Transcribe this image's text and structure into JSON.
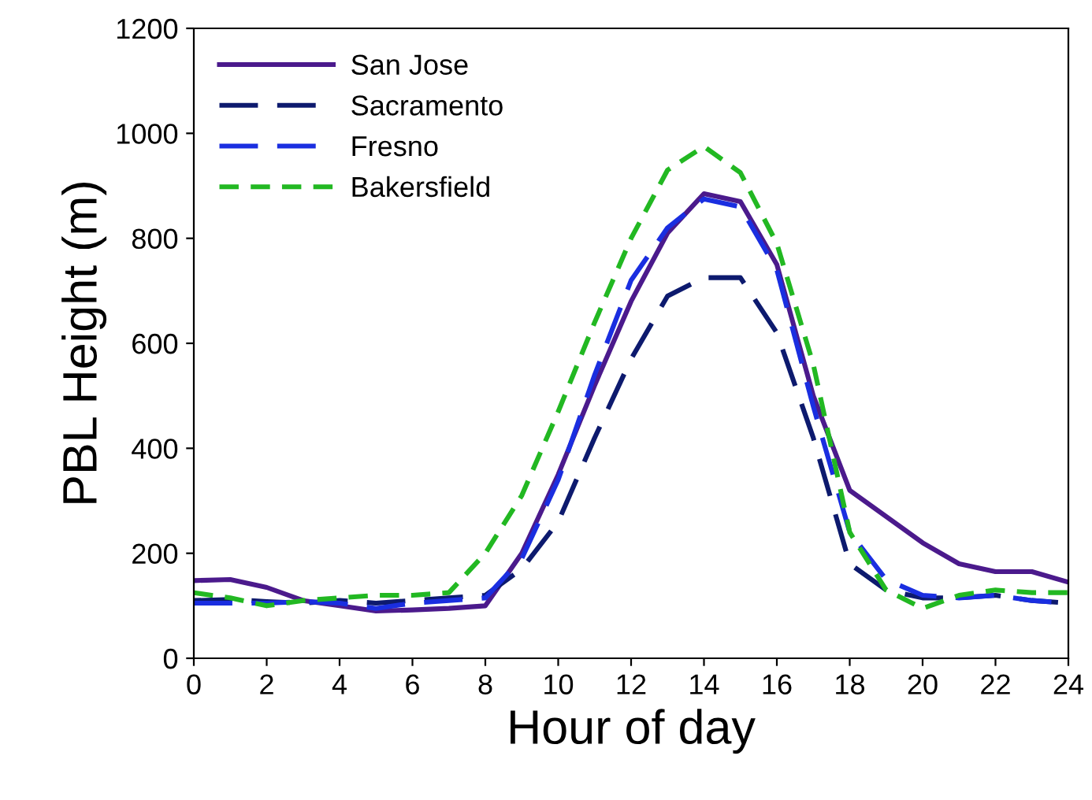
{
  "chart_data": {
    "type": "line",
    "xlabel": "Hour of day",
    "ylabel": "PBL Height (m)",
    "x": [
      0,
      1,
      2,
      3,
      4,
      5,
      6,
      7,
      8,
      9,
      10,
      11,
      12,
      13,
      14,
      15,
      16,
      17,
      18,
      19,
      20,
      21,
      22,
      23,
      24
    ],
    "series": [
      {
        "name": "San Jose",
        "color": "#4b1a8c",
        "line_style": "solid",
        "values": [
          148,
          150,
          135,
          110,
          100,
          90,
          92,
          95,
          100,
          200,
          350,
          520,
          680,
          810,
          885,
          870,
          750,
          500,
          320,
          270,
          220,
          180,
          165,
          165,
          145
        ]
      },
      {
        "name": "Sacramento",
        "color": "#0d1a6e",
        "line_style": "dashed",
        "values": [
          110,
          112,
          108,
          105,
          110,
          105,
          110,
          115,
          120,
          170,
          260,
          420,
          570,
          690,
          725,
          725,
          620,
          420,
          180,
          130,
          115,
          115,
          120,
          110,
          105
        ]
      },
      {
        "name": "Fresno",
        "color": "#1a2ee0",
        "line_style": "dashed",
        "values": [
          105,
          105,
          105,
          108,
          105,
          95,
          105,
          110,
          115,
          190,
          340,
          540,
          720,
          820,
          875,
          860,
          740,
          480,
          240,
          150,
          120,
          115,
          120,
          110,
          105
        ]
      },
      {
        "name": "Bakersfield",
        "color": "#22b822",
        "line_style": "dotted",
        "values": [
          125,
          115,
          100,
          110,
          115,
          120,
          120,
          125,
          200,
          310,
          470,
          640,
          800,
          930,
          975,
          925,
          790,
          560,
          240,
          130,
          95,
          120,
          130,
          125,
          125
        ]
      }
    ],
    "xlim": [
      0,
      24
    ],
    "xticks": [
      0,
      2,
      4,
      6,
      8,
      10,
      12,
      14,
      16,
      18,
      20,
      22,
      24
    ],
    "ylim": [
      0,
      1200
    ],
    "yticks": [
      0,
      200,
      400,
      600,
      800,
      1000,
      1200
    ],
    "grid": false,
    "legend": "top left",
    "marker": "none"
  }
}
